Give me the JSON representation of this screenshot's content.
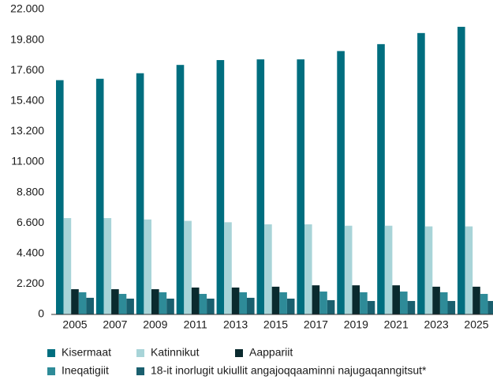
{
  "chart_data": {
    "type": "bar",
    "categories": [
      "2005",
      "2007",
      "2009",
      "2011",
      "2013",
      "2015",
      "2017",
      "2019",
      "2021",
      "2023",
      "2025"
    ],
    "series": [
      {
        "name": "Kisermaat",
        "color": "#006e7f",
        "values": [
          16900,
          17000,
          17400,
          18000,
          18350,
          18400,
          18400,
          19000,
          19500,
          20300,
          20750
        ]
      },
      {
        "name": "Katinnikut",
        "color": "#a8d4d8",
        "values": [
          6950,
          6950,
          6850,
          6750,
          6650,
          6500,
          6500,
          6400,
          6400,
          6350,
          6350
        ]
      },
      {
        "name": "Aappariit",
        "color": "#0a2a2e",
        "values": [
          1820,
          1820,
          1820,
          1940,
          1940,
          2000,
          2100,
          2100,
          2100,
          2000,
          2000
        ]
      },
      {
        "name": "Ineqatigiit",
        "color": "#2e8b98",
        "values": [
          1600,
          1480,
          1600,
          1480,
          1600,
          1600,
          1650,
          1600,
          1650,
          1600,
          1480
        ]
      },
      {
        "name": "18-it inorlugit ukiullit angajoqqaaminni najugaqanngitsut*",
        "color": "#1a5f6e",
        "values": [
          1200,
          1140,
          1140,
          1140,
          1200,
          1140,
          1030,
          970,
          970,
          970,
          970
        ]
      }
    ],
    "ylim": [
      0,
      22000
    ],
    "yticks": [
      0,
      {
        "value": 2200,
        "label": "2.200"
      },
      {
        "value": 4400,
        "label": "4.400"
      },
      {
        "value": 6600,
        "label": "6.600"
      },
      {
        "value": 8800,
        "label": "8.800"
      },
      {
        "value": 11000,
        "label": "11.000"
      },
      {
        "value": 13200,
        "label": "13.200"
      },
      {
        "value": 15400,
        "label": "15.400"
      },
      {
        "value": 17600,
        "label": "17.600"
      },
      {
        "value": 19800,
        "label": "19.800"
      },
      {
        "value": 22000,
        "label": "22.000"
      }
    ],
    "grid": false
  }
}
